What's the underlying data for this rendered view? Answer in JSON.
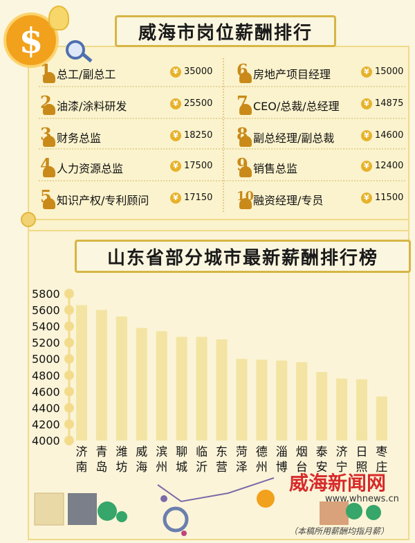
{
  "top": {
    "title": "威海市岗位薪酬排行",
    "left_items": [
      {
        "rank": "1",
        "name": "总工/副总工",
        "value": "35000"
      },
      {
        "rank": "2",
        "name": "油漆/涂料研发",
        "value": "25500"
      },
      {
        "rank": "3",
        "name": "财务总监",
        "value": "18250"
      },
      {
        "rank": "4",
        "name": "人力资源总监",
        "value": "17500"
      },
      {
        "rank": "5",
        "name": "知识产权/专利顾问",
        "value": "17150"
      }
    ],
    "right_items": [
      {
        "rank": "6",
        "name": "房地产项目经理",
        "value": "15000"
      },
      {
        "rank": "7",
        "name": "CEO/总裁/总经理",
        "value": "14875"
      },
      {
        "rank": "8",
        "name": "副总经理/副总裁",
        "value": "14600"
      },
      {
        "rank": "9",
        "name": "销售总监",
        "value": "12400"
      },
      {
        "rank": "10",
        "name": "融资经理/专员",
        "value": "11500"
      }
    ],
    "currency_symbol": "¥",
    "dollar_symbol": "$"
  },
  "chart_data": {
    "type": "bar",
    "title": "山东省部分城市最新薪酬排行榜",
    "categories": [
      "济南",
      "青岛",
      "潍坊",
      "威海",
      "滨州",
      "聊城",
      "临沂",
      "东营",
      "菏泽",
      "德州",
      "淄博",
      "烟台",
      "泰安",
      "济宁",
      "日照",
      "枣庄"
    ],
    "values": [
      5660,
      5600,
      5520,
      5380,
      5340,
      5270,
      5270,
      5240,
      5000,
      4990,
      4980,
      4960,
      4840,
      4760,
      4750,
      4540
    ],
    "yticks": [
      4000,
      4200,
      4400,
      4600,
      4800,
      5000,
      5200,
      5400,
      5600,
      5800
    ],
    "ylim": [
      4000,
      5800
    ],
    "grid": false,
    "bar_color": "#f3e4a3",
    "tick_marker_color": "#f2dc8c"
  },
  "footer": {
    "note": "（本稿所用薪酬均指月薪）",
    "watermark": "威海新闻网",
    "watermark_url": "www.whnews.cn"
  }
}
